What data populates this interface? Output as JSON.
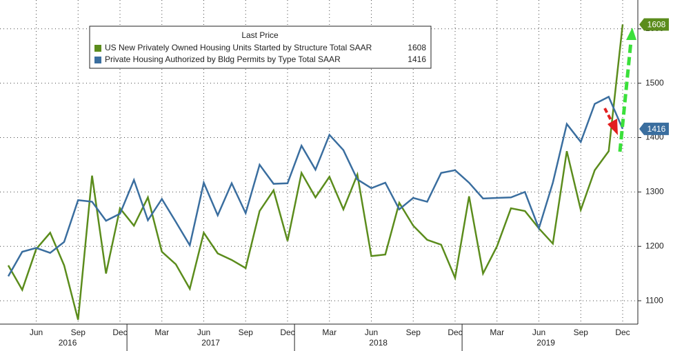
{
  "chart_data": {
    "type": "line",
    "legend_title": "Last Price",
    "categories": [
      null,
      null,
      "Jun",
      null,
      null,
      "Sep",
      null,
      null,
      "Dec",
      null,
      null,
      "Mar",
      null,
      null,
      "Jun",
      null,
      null,
      "Sep",
      null,
      null,
      "Dec",
      null,
      null,
      "Mar",
      null,
      null,
      "Jun",
      null,
      null,
      "Sep",
      null,
      null,
      "Dec",
      null,
      null,
      "Mar",
      null,
      null,
      "Jun",
      null,
      null,
      "Sep",
      null,
      null,
      "Dec"
    ],
    "years": [
      "2016",
      "2017",
      "2018",
      "2019"
    ],
    "series": [
      {
        "name": "US New Privately Owned Housing Units Started by Structure Total SAAR",
        "color": "#5b8c1c",
        "values": [
          1165,
          1120,
          1195,
          1225,
          1165,
          1065,
          1330,
          1150,
          1270,
          1238,
          1290,
          1190,
          1167,
          1122,
          1225,
          1187,
          1175,
          1160,
          1265,
          1303,
          1210,
          1335,
          1290,
          1328,
          1268,
          1332,
          1182,
          1185,
          1280,
          1238,
          1212,
          1203,
          1142,
          1292,
          1150,
          1200,
          1270,
          1265,
          1233,
          1205,
          1375,
          1267,
          1340,
          1375,
          1608
        ]
      },
      {
        "name": "Private Housing Authorized by Bldg Permits by Type Total SAAR",
        "color": "#3a6e9f",
        "values": [
          1145,
          1190,
          1197,
          1188,
          1208,
          1285,
          1282,
          1247,
          1260,
          1322,
          1248,
          1287,
          1245,
          1202,
          1317,
          1257,
          1316,
          1261,
          1350,
          1315,
          1316,
          1385,
          1341,
          1405,
          1377,
          1323,
          1307,
          1317,
          1268,
          1289,
          1282,
          1335,
          1340,
          1317,
          1288,
          1289,
          1290,
          1300,
          1233,
          1317,
          1425,
          1392,
          1462,
          1475,
          1416
        ]
      }
    ],
    "ylim": [
      1057,
      1653
    ],
    "yticks": [
      1100,
      1200,
      1300,
      1400,
      1500,
      1600
    ],
    "grid": true
  }
}
